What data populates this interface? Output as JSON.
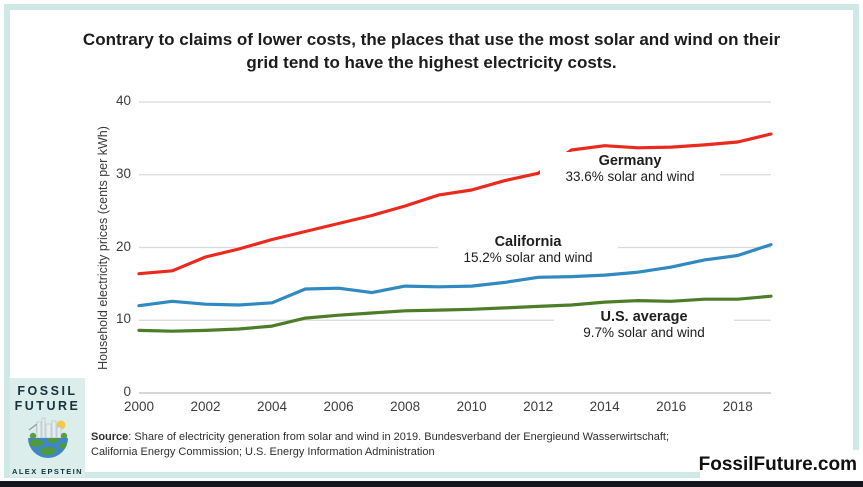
{
  "header": {
    "title_line1": "Contrary to claims of lower costs, the places that use the most solar and wind on their",
    "title_line2": "grid tend to have the highest electricity costs."
  },
  "chart_data": {
    "type": "line",
    "title": "Contrary to claims of lower costs, the places that use the most solar and wind on their grid tend to have the highest electricity costs.",
    "xlabel": "",
    "ylabel": "Household electricity prices (cents per kWh)",
    "xlim": [
      2000,
      2019
    ],
    "ylim": [
      0,
      40
    ],
    "grid": true,
    "x": [
      2000,
      2001,
      2002,
      2003,
      2004,
      2005,
      2006,
      2007,
      2008,
      2009,
      2010,
      2011,
      2012,
      2013,
      2014,
      2015,
      2016,
      2017,
      2018,
      2019
    ],
    "xticks": [
      2000,
      2002,
      2004,
      2006,
      2008,
      2010,
      2012,
      2014,
      2016,
      2018
    ],
    "yticks": [
      0,
      10,
      20,
      30,
      40
    ],
    "series": [
      {
        "name": "Germany",
        "annotation": "33.6% solar and wind",
        "color": "#ea2a1f",
        "values": [
          16.4,
          16.8,
          18.7,
          19.8,
          21.1,
          22.2,
          23.3,
          24.4,
          25.7,
          27.2,
          27.9,
          29.2,
          30.2,
          33.4,
          34.0,
          33.7,
          33.8,
          34.1,
          34.5,
          35.6
        ]
      },
      {
        "name": "California",
        "annotation": "15.2% solar and wind",
        "color": "#3189c2",
        "values": [
          12.0,
          12.6,
          12.2,
          12.1,
          12.4,
          14.3,
          14.4,
          13.8,
          14.7,
          14.6,
          14.7,
          15.2,
          15.9,
          16.0,
          16.2,
          16.6,
          17.3,
          18.3,
          18.9,
          20.4
        ]
      },
      {
        "name": "U.S. average",
        "annotation": "9.7% solar and wind",
        "color": "#4e7d29",
        "values": [
          8.6,
          8.5,
          8.6,
          8.8,
          9.2,
          10.3,
          10.7,
          11.0,
          11.3,
          11.4,
          11.5,
          11.7,
          11.9,
          12.1,
          12.5,
          12.7,
          12.6,
          12.9,
          12.9,
          13.3
        ]
      }
    ]
  },
  "source": {
    "prefix": "Source",
    "line1_rest": ": Share of electricity generation from solar and wind in 2019. Bundesverband der Energieund Wasserwirtschaft;",
    "line2": "California Energy Commission; U.S. Energy Information Administration"
  },
  "logo": {
    "title_line1": "FOSSIL",
    "title_line2": "FUTURE",
    "author": "ALEX EPSTEIN"
  },
  "footer": {
    "website": "FossilFuture.com"
  },
  "colors": {
    "frame": "#cfe9e6",
    "gridline": "#dadada",
    "axis": "#bfbfbf",
    "germany": "#ea2a1f",
    "california": "#3189c2",
    "us_average": "#4e7d29",
    "bottom_bar": "#15151d",
    "logo_bg": "#dbeeeb"
  }
}
